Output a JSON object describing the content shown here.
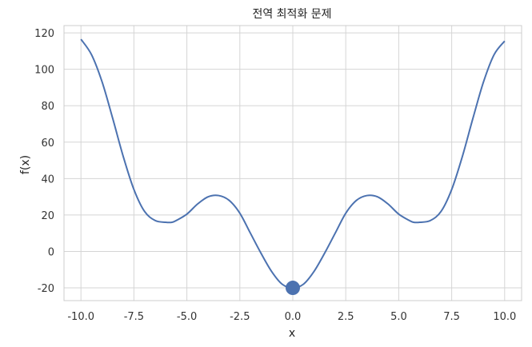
{
  "chart_data": {
    "type": "line",
    "title": "전역 최적화 문제",
    "xlabel": "x",
    "ylabel": "f(x)",
    "xlim": [
      -10.8,
      10.8
    ],
    "ylim": [
      -27,
      124
    ],
    "xticks": [
      -10.0,
      -7.5,
      -5.0,
      -2.5,
      0.0,
      2.5,
      5.0,
      7.5,
      10.0
    ],
    "xtick_labels": [
      "-10.0",
      "-7.5",
      "-5.0",
      "-2.5",
      "0.0",
      "2.5",
      "5.0",
      "7.5",
      "10.0"
    ],
    "yticks": [
      -20,
      0,
      20,
      40,
      60,
      80,
      100,
      120
    ],
    "ytick_labels": [
      "-20",
      "0",
      "20",
      "40",
      "60",
      "80",
      "100",
      "120"
    ],
    "grid": true,
    "series": [
      {
        "color": "#4c72b0",
        "x": [
          -10.0,
          -9.5,
          -9.0,
          -8.5,
          -8.0,
          -7.5,
          -7.0,
          -6.5,
          -6.0,
          -5.7,
          -5.5,
          -5.0,
          -4.5,
          -4.0,
          -3.5,
          -3.0,
          -2.5,
          -2.0,
          -1.5,
          -1.0,
          -0.5,
          0.0,
          0.5,
          1.0,
          1.5,
          2.0,
          2.5,
          3.0,
          3.5,
          4.0,
          4.5,
          5.0,
          5.5,
          5.7,
          6.0,
          6.5,
          7.0,
          7.5,
          8.0,
          8.5,
          9.0,
          9.5,
          10.0
        ],
        "y": [
          116.5,
          108,
          93,
          73,
          52,
          34,
          22,
          17,
          16,
          16,
          17,
          20.5,
          26,
          30,
          30.7,
          28,
          21,
          10,
          -1,
          -11,
          -18,
          -20,
          -18,
          -11,
          -1,
          10,
          21,
          28,
          30.7,
          30,
          26,
          20.5,
          17,
          16,
          16,
          17,
          22,
          34,
          52,
          73,
          93,
          108,
          115.5
        ]
      }
    ],
    "marker": {
      "x": 0.0,
      "y": -20,
      "color": "#4c72b0"
    }
  }
}
